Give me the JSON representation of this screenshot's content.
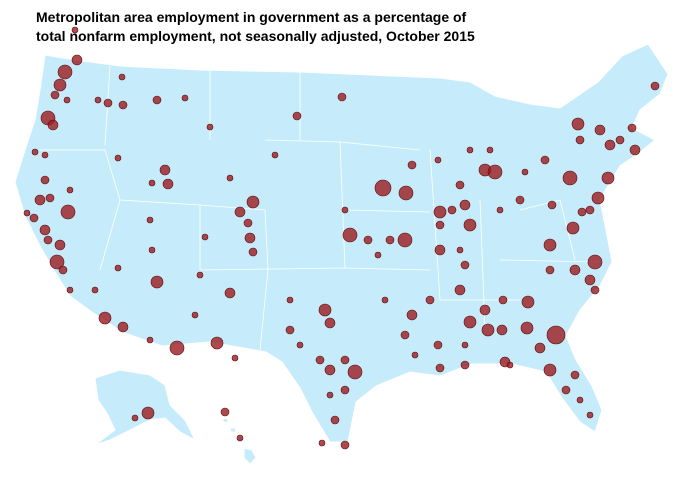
{
  "title": "Metropolitan area employment in government as a percentage of total nonfarm employment, not seasonally adjusted, October 2015"
}
